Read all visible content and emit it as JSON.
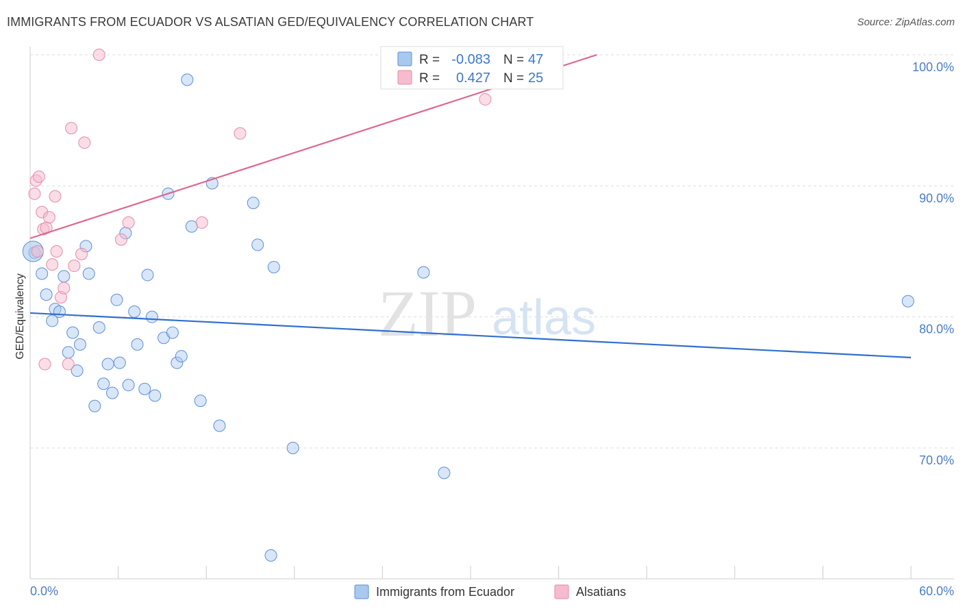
{
  "header": {
    "title": "IMMIGRANTS FROM ECUADOR VS ALSATIAN GED/EQUIVALENCY CORRELATION CHART",
    "source": "Source: ZipAtlas.com"
  },
  "watermark": {
    "zip": "ZIP",
    "atlas": "atlas"
  },
  "colors": {
    "blue_fill": "#a9c8ee",
    "blue_stroke": "#5b8fd6",
    "blue_line": "#2f6fce",
    "pink_fill": "#f6bccd",
    "pink_stroke": "#e58aa6",
    "pink_line": "#e0658e",
    "grid": "#dddddd",
    "tick_text": "#4a7cc7"
  },
  "legend": {
    "rows": [
      {
        "r_label": "R =",
        "r_value": "-0.083",
        "n_label": "N =",
        "n_value": "47"
      },
      {
        "r_label": "R =",
        "r_value": "0.427",
        "n_label": "N =",
        "n_value": "25"
      }
    ]
  },
  "bottom_legend": [
    "Immigrants from Ecuador",
    "Alsatians"
  ],
  "chart_data": {
    "type": "scatter",
    "title": "IMMIGRANTS FROM ECUADOR VS ALSATIAN GED/EQUIVALENCY CORRELATION CHART",
    "xlabel": "",
    "ylabel": "GED/Equivalency",
    "xlim": [
      0,
      60
    ],
    "ylim": [
      61.5,
      101.5
    ],
    "x_tick_labels": [
      "0.0%",
      "60.0%"
    ],
    "y_ticks": [
      70,
      80,
      90,
      100
    ],
    "y_tick_labels": [
      "70.0%",
      "80.0%",
      "90.0%",
      "100.0%"
    ],
    "grid": "horizontal dashed",
    "legend_position": "top-center",
    "series": [
      {
        "name": "Immigrants from Ecuador",
        "color": "#a9c8ee",
        "trend": {
          "x": [
            0,
            60
          ],
          "y": [
            80.3,
            76.9
          ]
        },
        "points": [
          [
            0.3,
            84.9
          ],
          [
            0.8,
            83.3
          ],
          [
            1.1,
            81.7
          ],
          [
            1.5,
            79.7
          ],
          [
            1.7,
            80.6
          ],
          [
            2.0,
            80.4
          ],
          [
            2.3,
            83.1
          ],
          [
            2.6,
            77.3
          ],
          [
            2.9,
            78.8
          ],
          [
            3.2,
            75.9
          ],
          [
            3.4,
            77.9
          ],
          [
            3.8,
            85.4
          ],
          [
            4.0,
            83.3
          ],
          [
            4.4,
            73.2
          ],
          [
            4.7,
            79.2
          ],
          [
            5.0,
            74.9
          ],
          [
            5.3,
            76.4
          ],
          [
            5.6,
            74.2
          ],
          [
            5.9,
            81.3
          ],
          [
            6.1,
            76.5
          ],
          [
            6.5,
            86.4
          ],
          [
            6.7,
            74.8
          ],
          [
            7.1,
            80.4
          ],
          [
            7.3,
            77.9
          ],
          [
            7.8,
            74.5
          ],
          [
            8.0,
            83.2
          ],
          [
            8.3,
            80.0
          ],
          [
            8.5,
            74.0
          ],
          [
            9.1,
            78.4
          ],
          [
            9.4,
            89.4
          ],
          [
            9.7,
            78.8
          ],
          [
            10.0,
            76.5
          ],
          [
            10.3,
            77.0
          ],
          [
            10.7,
            98.1
          ],
          [
            11.0,
            86.9
          ],
          [
            11.6,
            73.6
          ],
          [
            12.4,
            90.2
          ],
          [
            12.9,
            71.7
          ],
          [
            15.2,
            88.7
          ],
          [
            15.5,
            85.5
          ],
          [
            16.6,
            83.8
          ],
          [
            17.9,
            70.0
          ],
          [
            26.8,
            83.4
          ],
          [
            28.2,
            68.1
          ],
          [
            59.8,
            81.2
          ],
          [
            16.4,
            61.8
          ],
          [
            0.2,
            85.0
          ]
        ]
      },
      {
        "name": "Alsatians",
        "color": "#f6bccd",
        "trend": {
          "x": [
            0,
            38.6
          ],
          "y": [
            86.0,
            100.0
          ]
        },
        "points": [
          [
            0.3,
            89.4
          ],
          [
            0.4,
            90.4
          ],
          [
            0.6,
            90.7
          ],
          [
            0.8,
            88.0
          ],
          [
            0.9,
            86.7
          ],
          [
            1.1,
            86.8
          ],
          [
            1.3,
            87.6
          ],
          [
            1.5,
            84.0
          ],
          [
            1.7,
            89.2
          ],
          [
            1.8,
            85.0
          ],
          [
            2.1,
            81.5
          ],
          [
            2.3,
            82.2
          ],
          [
            2.6,
            76.4
          ],
          [
            2.8,
            94.4
          ],
          [
            3.0,
            83.9
          ],
          [
            3.5,
            84.8
          ],
          [
            3.7,
            93.3
          ],
          [
            4.7,
            100.0
          ],
          [
            6.2,
            85.9
          ],
          [
            6.7,
            87.2
          ],
          [
            11.7,
            87.2
          ],
          [
            14.3,
            94.0
          ],
          [
            31.0,
            96.6
          ],
          [
            1.0,
            76.4
          ],
          [
            0.5,
            85.0
          ]
        ]
      }
    ]
  }
}
